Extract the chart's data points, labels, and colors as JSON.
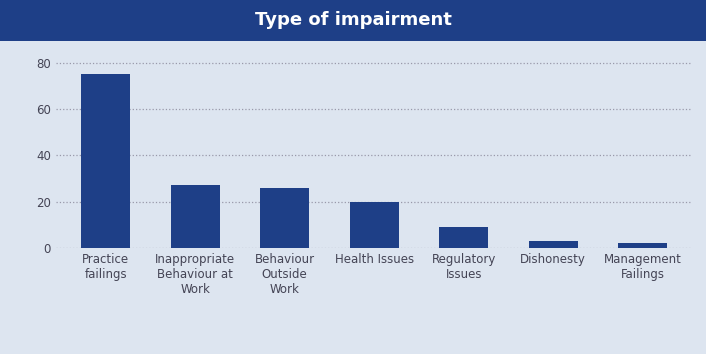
{
  "title": "Type of impairment",
  "title_bg_color": "#1e3f87",
  "title_text_color": "#ffffff",
  "bar_color": "#1e3f87",
  "background_color": "#dde5f0",
  "plot_bg_color": "#dde5f0",
  "categories": [
    "Practice\nfailings",
    "Inappropriate\nBehaviour at\nWork",
    "Behaviour\nOutside\nWork",
    "Health Issues",
    "Regulatory\nIssues",
    "Dishonesty",
    "Management\nFailings"
  ],
  "values": [
    75,
    27,
    26,
    20,
    9,
    3,
    2
  ],
  "ylim": [
    0,
    85
  ],
  "yticks": [
    0,
    20,
    40,
    60,
    80
  ],
  "grid_color": "#9999aa",
  "tick_color": "#444455",
  "title_fontsize": 13,
  "tick_fontsize": 8.5,
  "bar_width": 0.55
}
